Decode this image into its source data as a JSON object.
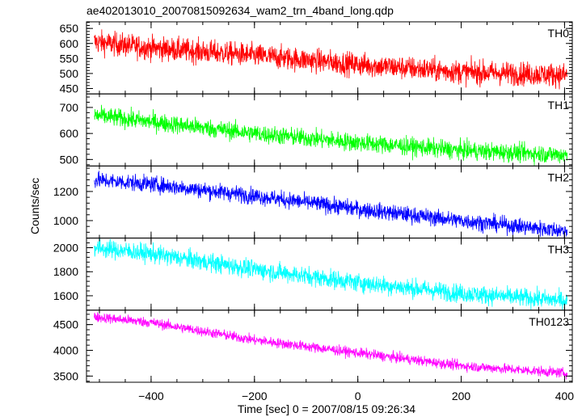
{
  "chart_data": {
    "type": "line",
    "title": "ae402013010_20070815092634_wam2_trn_4band_long.qdp",
    "xlabel": "Time [sec] 0 = 2007/08/15 09:26:34",
    "ylabel": "Counts/sec",
    "xlim": [
      -525,
      415
    ],
    "x_ticks": [
      -400,
      -200,
      0,
      200,
      400
    ],
    "x_tick_labels": [
      "−400",
      "−200",
      "0",
      "200",
      "400"
    ],
    "grid": false,
    "panels": [
      {
        "name": "TH0",
        "color": "#ff0000",
        "ylim": [
          432,
          672
        ],
        "y_ticks": [
          450,
          500,
          550,
          600,
          650
        ],
        "noise": 28,
        "trend": [
          [
            -510,
            605
          ],
          [
            -400,
            585
          ],
          [
            -200,
            560
          ],
          [
            0,
            530
          ],
          [
            200,
            505
          ],
          [
            400,
            495
          ]
        ]
      },
      {
        "name": "TH1",
        "color": "#00ff00",
        "ylim": [
          475,
          752
        ],
        "y_ticks": [
          500,
          600,
          700
        ],
        "noise": 25,
        "trend": [
          [
            -510,
            670
          ],
          [
            -400,
            645
          ],
          [
            -200,
            600
          ],
          [
            0,
            565
          ],
          [
            200,
            535
          ],
          [
            400,
            518
          ]
        ]
      },
      {
        "name": "TH2",
        "color": "#0000ff",
        "ylim": [
          880,
          1375
        ],
        "y_ticks": [
          1000,
          1200
        ],
        "noise": 40,
        "trend": [
          [
            -510,
            1280
          ],
          [
            -400,
            1250
          ],
          [
            -200,
            1170
          ],
          [
            0,
            1080
          ],
          [
            200,
            1000
          ],
          [
            400,
            930
          ]
        ]
      },
      {
        "name": "TH3",
        "color": "#00ffff",
        "ylim": [
          1480,
          2080
        ],
        "y_ticks": [
          1600,
          1800,
          2000
        ],
        "noise": 55,
        "trend": [
          [
            -510,
            2000
          ],
          [
            -400,
            1950
          ],
          [
            -200,
            1820
          ],
          [
            0,
            1710
          ],
          [
            200,
            1620
          ],
          [
            400,
            1560
          ]
        ]
      },
      {
        "name": "TH0123",
        "color": "#ff00ff",
        "ylim": [
          3380,
          4780
        ],
        "y_ticks": [
          3500,
          4000,
          4500
        ],
        "noise": 70,
        "trend": [
          [
            -510,
            4650
          ],
          [
            -400,
            4540
          ],
          [
            -200,
            4200
          ],
          [
            0,
            3950
          ],
          [
            200,
            3700
          ],
          [
            400,
            3560
          ]
        ]
      }
    ]
  }
}
